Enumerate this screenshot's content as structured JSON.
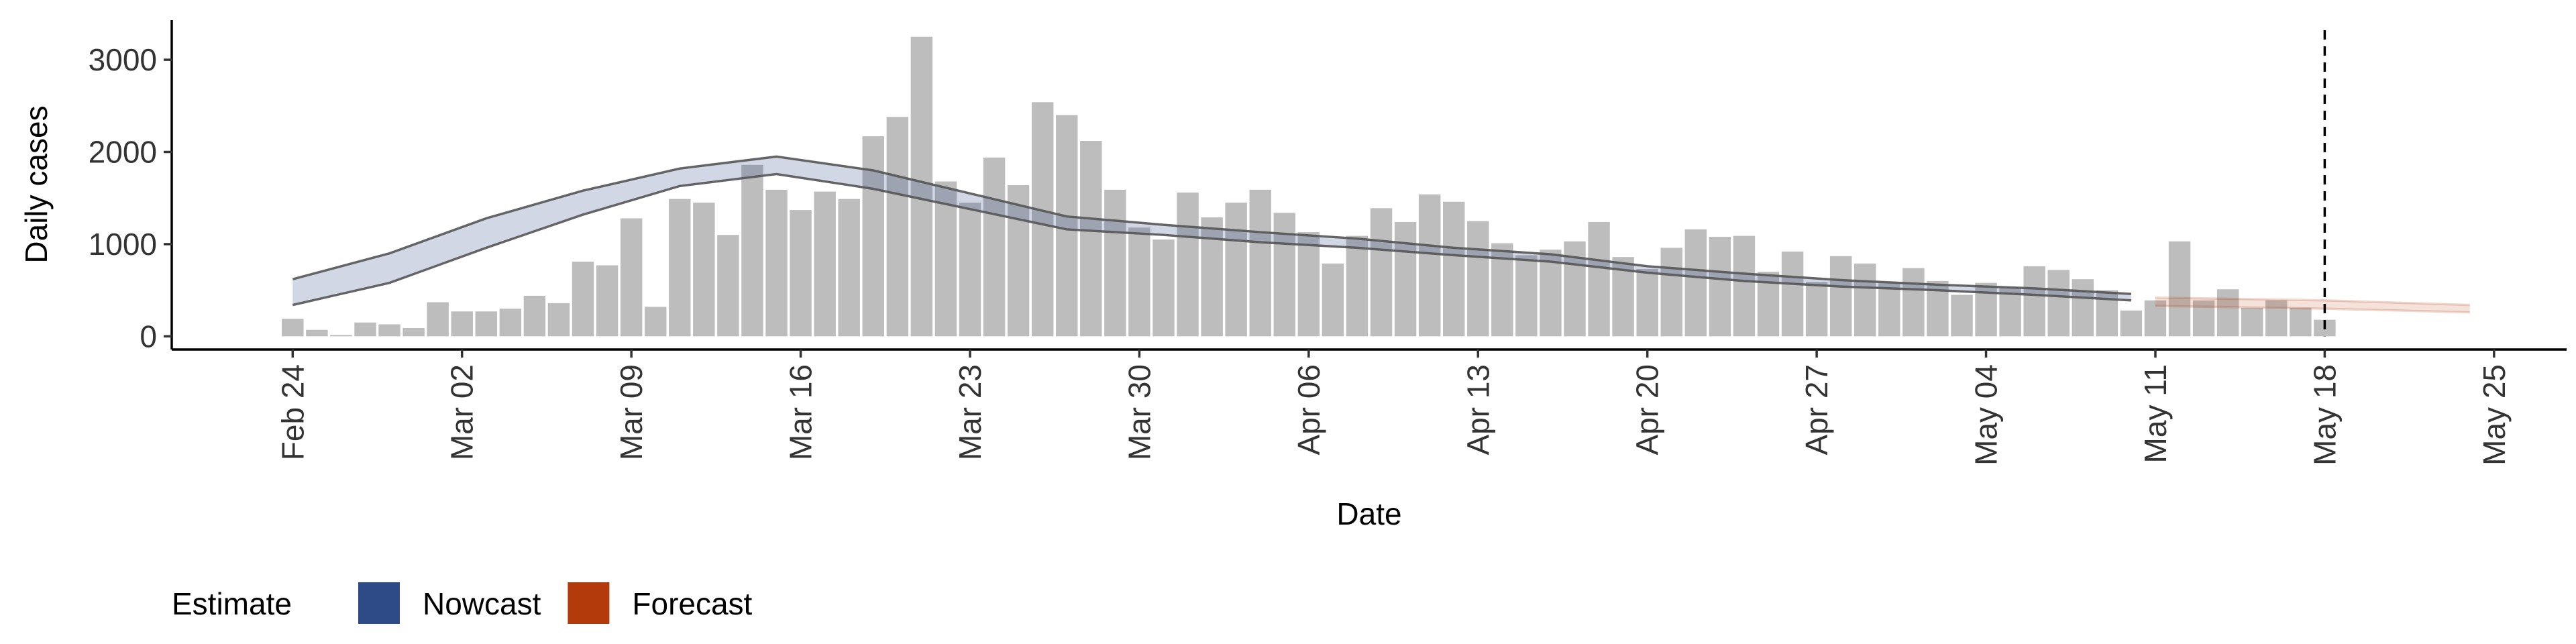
{
  "chart_data": {
    "type": "bar",
    "y_label": "Daily cases",
    "x_label": "Date",
    "legend_title": "Estimate",
    "bar_color": "#bdbdbd",
    "xlim": [
      "Feb 19",
      "May 28"
    ],
    "xticks": [
      "Feb 24",
      "Mar 02",
      "Mar 09",
      "Mar 16",
      "Mar 23",
      "Mar 30",
      "Apr 06",
      "Apr 13",
      "Apr 20",
      "Apr 27",
      "May 04",
      "May 11",
      "May 18",
      "May 25"
    ],
    "ylim": [
      -143,
      3430
    ],
    "yticks": [
      0,
      1000,
      2000,
      3000
    ],
    "vline": "May 18",
    "x": [
      "Feb 24",
      "Feb 25",
      "Feb 26",
      "Feb 27",
      "Feb 28",
      "Feb 29",
      "Mar 01",
      "Mar 02",
      "Mar 03",
      "Mar 04",
      "Mar 05",
      "Mar 06",
      "Mar 07",
      "Mar 08",
      "Mar 09",
      "Mar 10",
      "Mar 11",
      "Mar 12",
      "Mar 13",
      "Mar 14",
      "Mar 15",
      "Mar 16",
      "Mar 17",
      "Mar 18",
      "Mar 19",
      "Mar 20",
      "Mar 21",
      "Mar 22",
      "Mar 23",
      "Mar 24",
      "Mar 25",
      "Mar 26",
      "Mar 27",
      "Mar 28",
      "Mar 29",
      "Mar 30",
      "Mar 31",
      "Apr 01",
      "Apr 02",
      "Apr 03",
      "Apr 04",
      "Apr 05",
      "Apr 06",
      "Apr 07",
      "Apr 08",
      "Apr 09",
      "Apr 10",
      "Apr 11",
      "Apr 12",
      "Apr 13",
      "Apr 14",
      "Apr 15",
      "Apr 16",
      "Apr 17",
      "Apr 18",
      "Apr 19",
      "Apr 20",
      "Apr 21",
      "Apr 22",
      "Apr 23",
      "Apr 24",
      "Apr 25",
      "Apr 26",
      "Apr 27",
      "Apr 28",
      "Apr 29",
      "Apr 30",
      "May 01",
      "May 02",
      "May 03",
      "May 04",
      "May 05",
      "May 06",
      "May 07",
      "May 08",
      "May 09",
      "May 10",
      "May 11",
      "May 12",
      "May 13",
      "May 14",
      "May 15",
      "May 16",
      "May 17",
      "May 18"
    ],
    "values": [
      190,
      70,
      15,
      150,
      130,
      90,
      370,
      270,
      270,
      300,
      440,
      360,
      810,
      770,
      1280,
      320,
      1490,
      1450,
      1100,
      1860,
      1590,
      1370,
      1570,
      1490,
      2170,
      2380,
      3250,
      1680,
      1450,
      1940,
      1640,
      2540,
      2400,
      2120,
      1590,
      1180,
      1050,
      1560,
      1290,
      1450,
      1590,
      1340,
      1130,
      790,
      1090,
      1390,
      1240,
      1540,
      1460,
      1250,
      1010,
      880,
      940,
      1030,
      1240,
      860,
      730,
      960,
      1160,
      1080,
      1090,
      700,
      920,
      590,
      870,
      790,
      580,
      740,
      600,
      450,
      580,
      530,
      760,
      720,
      620,
      500,
      280,
      390,
      1030,
      390,
      510,
      310,
      390,
      310,
      180
    ],
    "series": [
      {
        "name": "Nowcast",
        "color": "#2f4b87",
        "x": [
          "Feb 24",
          "Feb 28",
          "Mar 03",
          "Mar 07",
          "Mar 11",
          "Mar 15",
          "Mar 19",
          "Mar 23",
          "Mar 27",
          "Mar 31",
          "Apr 04",
          "Apr 08",
          "Apr 12",
          "Apr 16",
          "Apr 20",
          "Apr 24",
          "Apr 28",
          "May 02",
          "May 06",
          "May 10"
        ],
        "upper": [
          620,
          900,
          1280,
          1580,
          1820,
          1950,
          1800,
          1550,
          1300,
          1210,
          1130,
          1060,
          960,
          890,
          760,
          680,
          610,
          560,
          520,
          460
        ],
        "lower": [
          340,
          580,
          960,
          1320,
          1630,
          1760,
          1600,
          1380,
          1160,
          1100,
          1020,
          960,
          880,
          810,
          690,
          600,
          540,
          500,
          450,
          390
        ]
      },
      {
        "name": "Forecast",
        "color": "#b33a0b",
        "x": [
          "May 11",
          "May 18",
          "May 24"
        ],
        "upper": [
          420,
          390,
          340
        ],
        "lower": [
          330,
          300,
          260
        ]
      }
    ]
  }
}
